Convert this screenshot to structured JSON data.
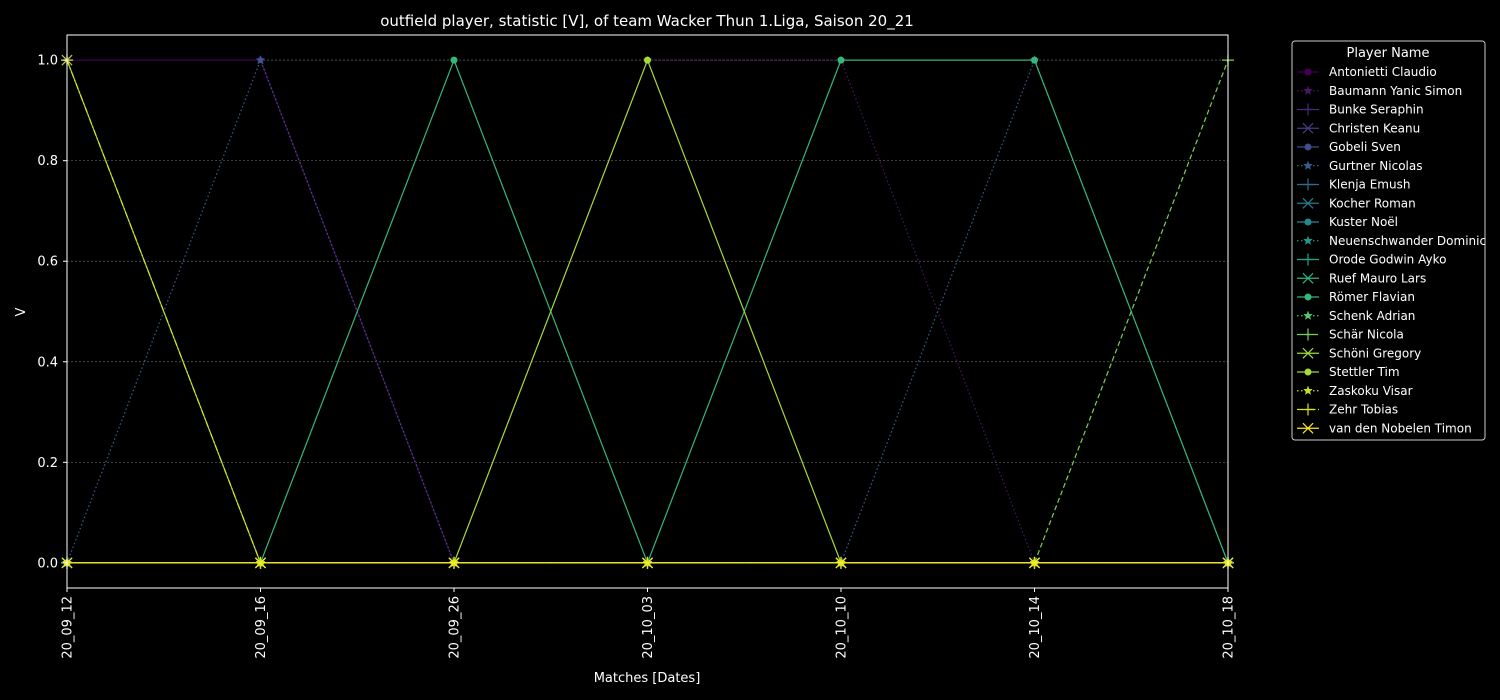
{
  "chart_data": {
    "type": "line",
    "title": "outfield player, statistic [V], of team Wacker Thun 1.Liga, Saison 20_21",
    "xlabel": "Matches [Dates]",
    "ylabel": "V",
    "categories": [
      "20_09_12",
      "20_09_16",
      "20_09_26",
      "20_10_03",
      "20_10_10",
      "20_10_14",
      "20_10_18"
    ],
    "ylim": [
      -0.05,
      1.05
    ],
    "yticks": [
      "0.0",
      "0.2",
      "0.4",
      "0.6",
      "0.8",
      "1.0"
    ],
    "grid": true,
    "legend_title": "Player Name",
    "legend_position": "outside-right",
    "series": [
      {
        "name": "Antonietti Claudio",
        "color": "#440154",
        "marker": "o",
        "dash": "solid",
        "values": [
          1,
          1,
          0,
          0,
          0,
          0,
          0
        ]
      },
      {
        "name": "Baumann Yanic Simon",
        "color": "#481769",
        "marker": "*",
        "dash": "dotted",
        "values": [
          0,
          0,
          0,
          1,
          1,
          0,
          0
        ]
      },
      {
        "name": "Bunke Seraphin",
        "color": "#472a7a",
        "marker": "+",
        "dash": "solid",
        "values": [
          0,
          0,
          0,
          0,
          0,
          0,
          0
        ]
      },
      {
        "name": "Christen Keanu",
        "color": "#433d84",
        "marker": "x",
        "dash": "solid",
        "values": [
          0,
          0,
          0,
          0,
          0,
          0,
          0
        ]
      },
      {
        "name": "Gobeli Sven",
        "color": "#3d4e8a",
        "marker": "o",
        "dash": "solid",
        "values": [
          0,
          0,
          0,
          0,
          0,
          0,
          0
        ]
      },
      {
        "name": "Gurtner Nicolas",
        "color": "#355e8d",
        "marker": "*",
        "dash": "dotted",
        "values": [
          0,
          1,
          0,
          0,
          0,
          1,
          0
        ]
      },
      {
        "name": "Klenja Emush",
        "color": "#2e6d8e",
        "marker": "+",
        "dash": "solid",
        "values": [
          0,
          0,
          0,
          0,
          0,
          0,
          0
        ]
      },
      {
        "name": "Kocher Roman",
        "color": "#297b8e",
        "marker": "x",
        "dash": "solid",
        "values": [
          0,
          0,
          0,
          0,
          0,
          0,
          0
        ]
      },
      {
        "name": "Kuster Noël",
        "color": "#23898e",
        "marker": "o",
        "dash": "solid",
        "values": [
          0,
          0,
          0,
          0,
          0,
          0,
          0
        ]
      },
      {
        "name": "Neuenschwander Dominic",
        "color": "#1f978b",
        "marker": "*",
        "dash": "dotted",
        "values": [
          0,
          0,
          0,
          0,
          0,
          0,
          0
        ]
      },
      {
        "name": "Orode Godwin Ayko",
        "color": "#21a585",
        "marker": "+",
        "dash": "solid",
        "values": [
          0,
          0,
          0,
          0,
          0,
          0,
          0
        ]
      },
      {
        "name": "Ruef Mauro Lars",
        "color": "#2eb37c",
        "marker": "x",
        "dash": "solid",
        "values": [
          0,
          0,
          0,
          0,
          0,
          0,
          0
        ]
      },
      {
        "name": "Römer Flavian",
        "color": "#35b779",
        "marker": "o",
        "dash": "solid",
        "values": [
          0,
          0,
          1,
          0,
          1,
          1,
          0
        ]
      },
      {
        "name": "Schenk Adrian",
        "color": "#54c568",
        "marker": "*",
        "dash": "dotted",
        "values": [
          0,
          0,
          0,
          0,
          0,
          0,
          0
        ]
      },
      {
        "name": "Schär Nicola",
        "color": "#7ad151",
        "marker": "+",
        "dash": "dashed",
        "values": [
          0,
          0,
          0,
          0,
          0,
          0,
          1
        ]
      },
      {
        "name": "Schöni Gregory",
        "color": "#9fda3a",
        "marker": "x",
        "dash": "solid",
        "values": [
          1,
          0,
          0,
          0,
          0,
          0,
          0
        ]
      },
      {
        "name": "Stettler Tim",
        "color": "#a5db36",
        "marker": "o",
        "dash": "solid",
        "values": [
          0,
          0,
          0,
          1,
          0,
          0,
          0
        ]
      },
      {
        "name": "Zaskoku Visar",
        "color": "#c8e020",
        "marker": "*",
        "dash": "dotted",
        "values": [
          0,
          0,
          0,
          0,
          0,
          0,
          0
        ]
      },
      {
        "name": "Zehr Tobias",
        "color": "#e2e418",
        "marker": "+",
        "dash": "dashdot",
        "values": [
          1,
          0,
          0,
          0,
          0,
          0,
          0
        ]
      },
      {
        "name": "van den Nobelen Timon",
        "color": "#fde725",
        "marker": "x",
        "dash": "solid",
        "values": [
          0,
          0,
          0,
          0,
          0,
          0,
          0
        ]
      }
    ]
  }
}
